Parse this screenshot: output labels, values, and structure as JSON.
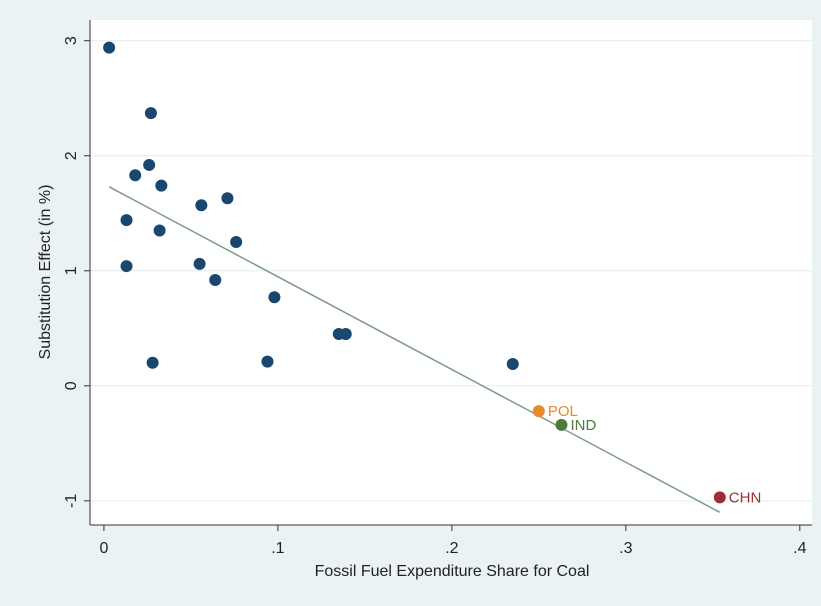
{
  "chart_data": {
    "type": "scatter",
    "x_label": "Fossil Fuel Expenditure Share for Coal",
    "y_label": "Substitution Effect (in %)",
    "series": [
      {
        "color": "#1a476f",
        "x": [
          0.003,
          0.027,
          0.026,
          0.018,
          0.033,
          0.056,
          0.071,
          0.013,
          0.032,
          0.076,
          0.013,
          0.055,
          0.064,
          0.098,
          0.135,
          0.139,
          0.028,
          0.094,
          0.235
        ],
        "values": [
          2.94,
          2.37,
          1.92,
          1.83,
          1.74,
          1.57,
          1.63,
          1.44,
          1.35,
          1.25,
          1.04,
          1.06,
          0.92,
          0.77,
          0.45,
          0.45,
          0.2,
          0.21,
          0.19
        ]
      }
    ],
    "labeled_points": [
      {
        "label": "POL",
        "x": 0.25,
        "y": -0.22,
        "color": "#e8892b"
      },
      {
        "label": "IND",
        "x": 0.263,
        "y": -0.34,
        "color": "#4f7a3a"
      },
      {
        "label": "CHN",
        "x": 0.354,
        "y": -0.97,
        "color": "#9b2f35"
      }
    ],
    "fit_line": {
      "x": [
        0.003,
        0.354
      ],
      "y": [
        1.73,
        -1.1
      ],
      "color": "#7f9a8c"
    },
    "xlim": [
      -0.008,
      0.407
    ],
    "ylim": [
      -1.21,
      3.18
    ],
    "xticks": [
      0,
      {
        "value": 0.1,
        "label": ".1"
      },
      {
        "value": 0.2,
        "label": ".2"
      },
      {
        "value": 0.3,
        "label": ".3"
      },
      {
        "value": 0.4,
        "label": ".4"
      }
    ],
    "yticks": [
      -1,
      0,
      1,
      2,
      3
    ],
    "grid": true
  }
}
